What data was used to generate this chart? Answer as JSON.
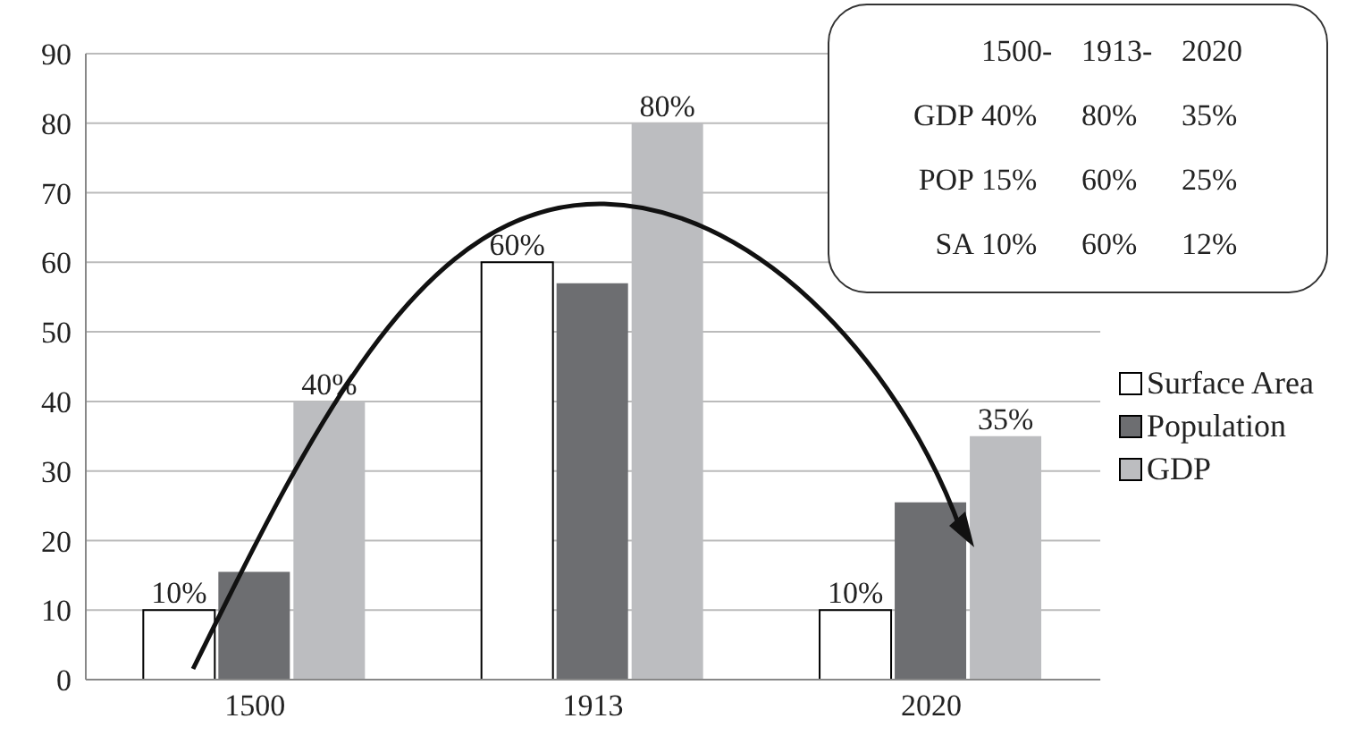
{
  "chart_data": {
    "type": "bar",
    "categories": [
      "1500",
      "1913",
      "2020"
    ],
    "series": [
      {
        "name": "Surface Area",
        "color": "#ffffff",
        "values": [
          10,
          60,
          10
        ],
        "value_labels": [
          "10%",
          "60%",
          "10%"
        ]
      },
      {
        "name": "Population",
        "color": "#6d6e71",
        "values": [
          15.5,
          57,
          25.5
        ],
        "value_labels": [
          null,
          null,
          null
        ]
      },
      {
        "name": "GDP",
        "color": "#bcbdc0",
        "values": [
          40,
          80,
          35
        ],
        "value_labels": [
          "40%",
          "80%",
          "35%"
        ]
      }
    ],
    "ylim": [
      0,
      90
    ],
    "yticks": [
      0,
      10,
      20,
      30,
      40,
      50,
      60,
      70,
      80,
      90
    ],
    "grid": "y",
    "legend": "right",
    "annotations": [
      "\t1500-\t1913-\t2020",
      "GDP\t40%\t80%\t35%",
      "POP\t15%\t60%\t25%",
      "SA\t10%\t60%\t12%"
    ]
  }
}
